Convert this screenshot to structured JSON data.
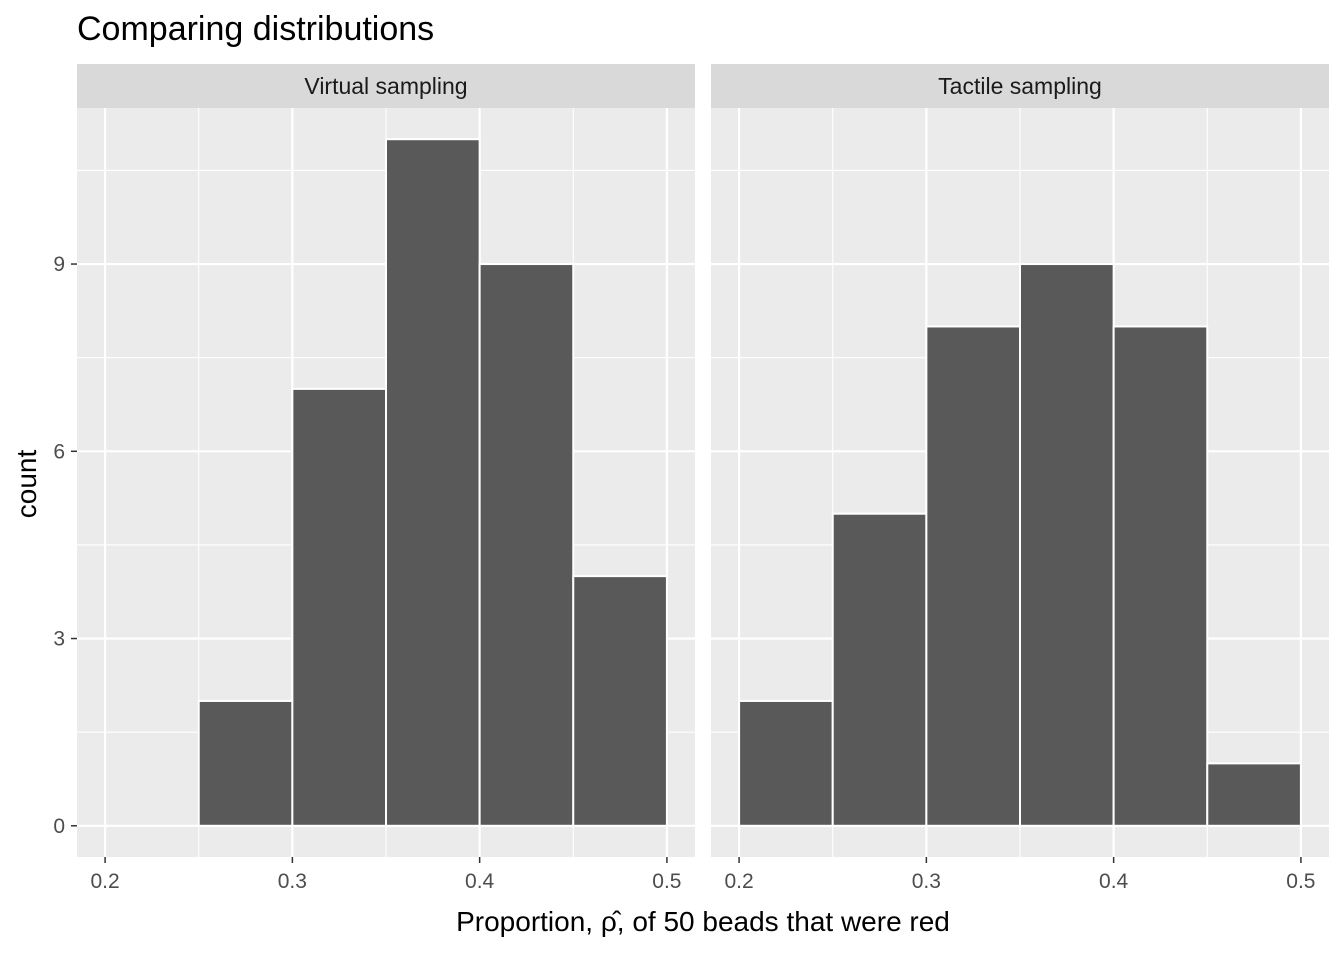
{
  "chart_data": {
    "type": "bar",
    "title": "Comparing distributions",
    "xlabel": "Proportion, ρ̂, of 50 beads that were red",
    "ylabel": "count",
    "xlim": [
      0.185,
      0.515
    ],
    "ylim": [
      -0.5,
      11.5
    ],
    "x_ticks": [
      0.2,
      0.3,
      0.4,
      0.5
    ],
    "x_tick_labels": [
      "0.2",
      "0.3",
      "0.4",
      "0.5"
    ],
    "y_ticks": [
      0,
      3,
      6,
      9
    ],
    "y_tick_labels": [
      "0",
      "3",
      "6",
      "9"
    ],
    "binwidth": 0.05,
    "grid": true,
    "legend": "none",
    "colors": {
      "bar_fill": "#595959",
      "bar_outline": "#ffffff",
      "panel_bg": "#ebebeb",
      "strip_bg": "#d9d9d9",
      "grid": "#ffffff"
    },
    "panels": [
      {
        "name": "Virtual sampling",
        "bins": [
          {
            "xmin": 0.25,
            "xmax": 0.3,
            "count": 2
          },
          {
            "xmin": 0.3,
            "xmax": 0.35,
            "count": 7
          },
          {
            "xmin": 0.35,
            "xmax": 0.4,
            "count": 11
          },
          {
            "xmin": 0.4,
            "xmax": 0.45,
            "count": 9
          },
          {
            "xmin": 0.45,
            "xmax": 0.5,
            "count": 4
          }
        ]
      },
      {
        "name": "Tactile sampling",
        "bins": [
          {
            "xmin": 0.2,
            "xmax": 0.25,
            "count": 2
          },
          {
            "xmin": 0.25,
            "xmax": 0.3,
            "count": 5
          },
          {
            "xmin": 0.3,
            "xmax": 0.35,
            "count": 8
          },
          {
            "xmin": 0.35,
            "xmax": 0.4,
            "count": 9
          },
          {
            "xmin": 0.4,
            "xmax": 0.45,
            "count": 8
          },
          {
            "xmin": 0.45,
            "xmax": 0.5,
            "count": 1
          }
        ]
      }
    ]
  }
}
